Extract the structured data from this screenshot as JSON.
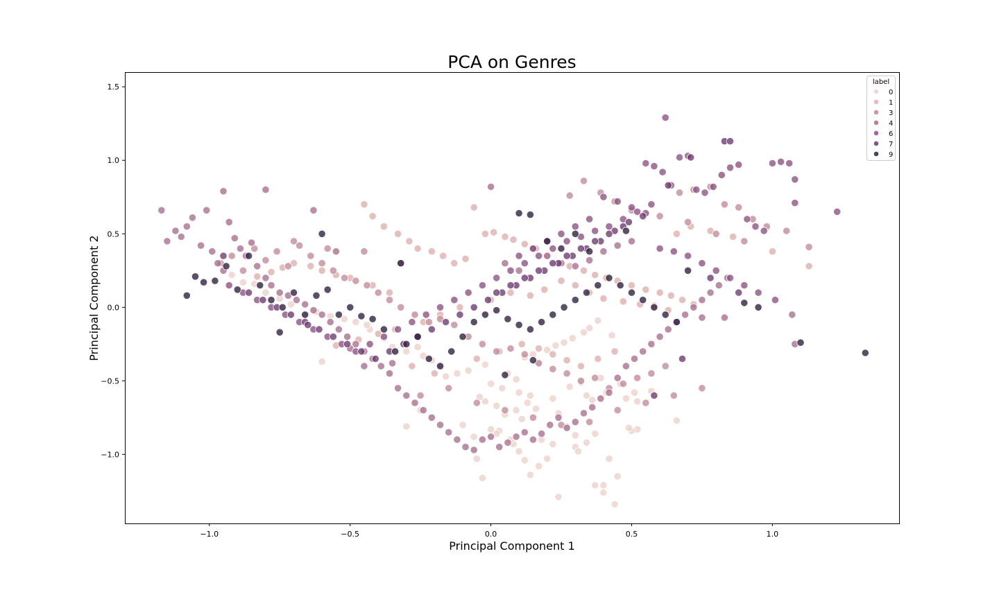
{
  "chart_data": {
    "type": "scatter",
    "title": "PCA on Genres",
    "xlabel": "Principal Component 1",
    "ylabel": "Principal Component 2",
    "xlim": [
      -1.3,
      1.45
    ],
    "ylim": [
      -1.47,
      1.6
    ],
    "xticks": [
      -1.0,
      -0.5,
      0.0,
      0.5,
      1.0
    ],
    "xtick_labels": [
      "−1.0",
      "−0.5",
      "0.0",
      "0.5",
      "1.0"
    ],
    "yticks": [
      1.5,
      1.0,
      0.5,
      0.0,
      -0.5,
      -1.0
    ],
    "ytick_labels": [
      "1.5",
      "1.0",
      "0.5",
      "0.0",
      "−0.5",
      "−1.0"
    ],
    "grid": false,
    "legend": {
      "title": "label",
      "placement": "top-right"
    },
    "series": [
      {
        "name": "0",
        "color": "#edd1cb",
        "x": [
          0.4,
          0.44,
          0.37,
          0.45,
          0.42,
          0.4,
          0.52,
          0.5,
          0.49,
          0.57,
          0.66,
          0.3,
          0.31,
          0.34,
          0.37,
          0.24,
          0.2,
          0.22,
          0.18,
          0.17,
          0.14,
          0.12,
          0.1,
          0.08,
          0.07,
          0.03,
          0.02,
          0.0,
          -0.05,
          -0.03,
          -0.02,
          0.02,
          0.05,
          0.09,
          0.11,
          0.13,
          0.16,
          0.24,
          0.27,
          0.3,
          0.34,
          0.36,
          0.41,
          0.48,
          0.51,
          0.52,
          -0.08,
          -0.12,
          -0.16,
          -0.18,
          -0.21,
          -0.24,
          -0.26,
          -0.3,
          -0.35,
          -0.38,
          -0.43,
          -0.44,
          -0.48,
          -0.52,
          -0.57,
          -0.62,
          -0.66,
          -0.71,
          -0.75,
          -0.8,
          -0.84,
          -0.88,
          -0.92,
          -0.6,
          -0.3,
          -0.25,
          0.0,
          0.04,
          -0.02,
          0.06,
          0.09,
          0.12,
          0.15,
          0.17,
          0.2,
          0.23,
          0.26,
          0.29,
          0.33,
          0.35,
          0.38,
          0.43,
          -0.1,
          -0.06,
          -0.04,
          0.1,
          0.14,
          0.22,
          0.28,
          0.32,
          0.39,
          0.46
        ],
        "y": [
          -1.26,
          -1.34,
          -1.21,
          -1.15,
          -1.03,
          -1.21,
          -0.83,
          -0.84,
          -0.82,
          -0.57,
          -0.77,
          -0.95,
          -0.98,
          -0.92,
          -0.86,
          -1.29,
          -1.03,
          -0.93,
          -0.9,
          -1.08,
          -1.14,
          -1.04,
          -0.98,
          -0.93,
          -0.9,
          -0.84,
          -0.86,
          -0.83,
          -1.03,
          -1.16,
          -0.64,
          -0.67,
          -0.73,
          -0.7,
          -0.76,
          -0.65,
          -0.69,
          -0.72,
          -0.81,
          -0.87,
          -0.6,
          -0.63,
          -0.58,
          -0.62,
          -0.58,
          -0.64,
          -0.43,
          -0.45,
          -0.47,
          -0.4,
          -0.36,
          -0.33,
          -0.27,
          -0.3,
          -0.27,
          -0.21,
          -0.15,
          -0.12,
          -0.1,
          -0.08,
          -0.06,
          -0.03,
          -0.05,
          0.02,
          0.06,
          0.1,
          0.16,
          0.17,
          0.22,
          -0.37,
          -0.81,
          -0.7,
          -0.52,
          -0.55,
          -0.39,
          -0.45,
          -0.49,
          -0.34,
          -0.32,
          -0.38,
          -0.29,
          -0.26,
          -0.24,
          -0.21,
          -0.17,
          -0.14,
          -0.09,
          -0.19,
          -0.8,
          -0.88,
          -0.61,
          -0.58,
          -0.6,
          -0.62,
          -0.54,
          -0.51,
          -0.48,
          -0.52
        ]
      },
      {
        "name": "1",
        "color": "#dcb0ad",
        "x": [
          -0.45,
          -0.42,
          -0.38,
          -0.33,
          -0.29,
          -0.26,
          -0.21,
          -0.17,
          -0.13,
          -0.09,
          -0.06,
          -0.02,
          0.01,
          0.05,
          0.08,
          0.12,
          0.16,
          0.2,
          0.24,
          0.28,
          0.33,
          0.37,
          0.41,
          0.45,
          0.5,
          0.55,
          0.6,
          0.64,
          0.68,
          0.72,
          -0.5,
          -0.55,
          -0.6,
          -0.64,
          -0.7,
          -0.74,
          -0.78,
          -0.83,
          -0.55,
          -0.47,
          -0.4,
          -0.34,
          -0.24,
          -0.18,
          -0.11,
          0.0,
          0.07,
          0.14,
          0.19,
          0.25,
          0.3,
          0.35,
          0.4,
          0.47,
          0.53,
          0.58,
          0.63,
          -0.28,
          -0.2,
          -0.05,
          0.03,
          0.11,
          0.17,
          0.22,
          0.27,
          0.32,
          0.38,
          0.44,
          0.66,
          0.71,
          0.78,
          0.86,
          1.13,
          1.0,
          -0.42,
          -0.36
        ],
        "y": [
          0.7,
          0.62,
          0.55,
          0.5,
          0.45,
          0.4,
          0.38,
          0.35,
          0.3,
          0.33,
          0.68,
          0.5,
          0.51,
          0.48,
          0.46,
          0.43,
          0.4,
          0.35,
          0.3,
          0.28,
          0.25,
          0.22,
          0.2,
          0.18,
          0.15,
          0.12,
          0.1,
          0.08,
          0.05,
          0.02,
          0.2,
          0.22,
          0.25,
          0.28,
          0.3,
          0.27,
          0.24,
          0.21,
          -0.26,
          -0.22,
          -0.18,
          -0.15,
          -0.1,
          -0.05,
          0.0,
          0.05,
          0.1,
          0.08,
          0.12,
          0.18,
          0.15,
          0.1,
          0.06,
          0.04,
          0.02,
          0.01,
          -0.02,
          -0.4,
          -0.45,
          -0.35,
          -0.3,
          -0.25,
          -0.28,
          -0.32,
          -0.36,
          -0.4,
          -0.35,
          -0.3,
          0.5,
          0.55,
          0.52,
          0.48,
          0.28,
          0.38,
          0.15,
          0.1
        ]
      },
      {
        "name": "3",
        "color": "#c08a98",
        "x": [
          -0.96,
          -0.92,
          -0.88,
          -0.84,
          -0.8,
          -0.76,
          -0.72,
          -0.68,
          -0.64,
          -0.6,
          -0.56,
          -0.52,
          -0.48,
          -0.44,
          -0.4,
          -0.36,
          -0.32,
          -0.27,
          -0.22,
          -0.18,
          -0.13,
          -0.08,
          -0.03,
          0.02,
          0.07,
          0.12,
          0.17,
          0.22,
          0.27,
          0.32,
          0.37,
          0.42,
          0.47,
          0.52,
          0.57,
          0.62,
          0.67,
          0.72,
          0.78,
          0.83,
          0.88,
          0.93,
          0.98,
          1.05,
          1.13,
          -0.25,
          -0.15,
          -0.05,
          0.05,
          0.15,
          0.25,
          0.35,
          0.45,
          0.55,
          0.65,
          0.75,
          -0.7,
          -0.58,
          -0.45,
          -0.32,
          0.28,
          0.33,
          0.39,
          0.44,
          0.5,
          0.6,
          0.7,
          0.8,
          0.9
        ],
        "y": [
          0.3,
          0.35,
          0.25,
          0.4,
          0.32,
          0.38,
          0.28,
          0.42,
          0.35,
          0.3,
          0.25,
          0.2,
          0.18,
          0.15,
          0.1,
          0.05,
          0.0,
          -0.05,
          -0.1,
          -0.08,
          -0.12,
          -0.2,
          -0.25,
          -0.3,
          -0.28,
          -0.32,
          -0.38,
          -0.42,
          -0.45,
          -0.5,
          -0.48,
          -0.55,
          -0.52,
          -0.48,
          -0.45,
          -0.4,
          0.78,
          0.8,
          0.82,
          0.7,
          0.68,
          0.6,
          0.55,
          0.52,
          0.41,
          -0.6,
          -0.55,
          -0.65,
          -0.7,
          -0.75,
          -0.8,
          -0.78,
          -0.7,
          -0.65,
          -0.6,
          -0.55,
          0.45,
          0.4,
          0.38,
          0.3,
          0.76,
          0.86,
          0.78,
          0.72,
          0.66,
          0.62,
          0.58,
          0.5,
          0.45
        ]
      },
      {
        "name": "4",
        "color": "#a86e8f",
        "x": [
          -1.17,
          -1.15,
          -1.12,
          -1.1,
          -1.08,
          -1.06,
          -1.03,
          -1.01,
          -0.99,
          -0.97,
          -0.95,
          -0.93,
          -0.91,
          -0.89,
          -0.87,
          -0.85,
          -0.83,
          -0.8,
          -0.78,
          -0.75,
          -0.72,
          -0.69,
          -0.66,
          -0.63,
          -0.6,
          -0.57,
          -0.54,
          -0.51,
          -0.48,
          -0.45,
          -0.42,
          -0.39,
          -0.36,
          -0.33,
          -0.3,
          -0.27,
          -0.24,
          -0.21,
          -0.18,
          -0.15,
          -0.12,
          -0.09,
          -0.06,
          -0.03,
          0.0,
          0.03,
          0.06,
          0.09,
          0.12,
          0.15,
          0.18,
          0.21,
          0.24,
          0.27,
          0.3,
          0.33,
          0.36,
          0.39,
          0.42,
          0.45,
          0.48,
          0.51,
          0.54,
          0.57,
          0.6,
          0.63,
          0.66,
          0.69,
          0.72,
          0.75,
          0.78,
          0.81,
          0.84,
          1.07,
          1.08,
          -0.95,
          -0.8,
          -0.63,
          -0.55,
          0.0,
          0.05,
          0.1,
          0.15,
          0.2,
          0.25,
          0.3,
          0.35,
          0.4,
          0.45,
          0.5,
          -0.5,
          -0.45,
          -0.35,
          0.75,
          0.83
        ],
        "y": [
          0.66,
          0.45,
          0.52,
          0.48,
          0.55,
          0.61,
          0.42,
          0.66,
          0.38,
          0.3,
          0.25,
          0.58,
          0.47,
          0.4,
          0.35,
          0.44,
          0.28,
          0.2,
          0.15,
          0.1,
          0.08,
          0.05,
          0.02,
          -0.02,
          -0.05,
          -0.1,
          -0.15,
          -0.2,
          -0.25,
          -0.3,
          -0.35,
          -0.4,
          -0.45,
          -0.55,
          -0.6,
          -0.65,
          -0.7,
          -0.75,
          -0.8,
          -0.85,
          -0.9,
          -0.95,
          -0.97,
          -0.9,
          -0.88,
          -0.95,
          -0.92,
          -0.88,
          -0.85,
          -0.9,
          -0.86,
          -0.8,
          -0.75,
          -0.82,
          -0.78,
          -0.72,
          -0.68,
          -0.62,
          -0.58,
          -0.48,
          -0.4,
          -0.35,
          -0.3,
          -0.25,
          -0.2,
          -0.15,
          -0.1,
          -0.05,
          0.0,
          0.05,
          0.1,
          0.15,
          0.2,
          -0.05,
          -0.25,
          0.79,
          0.8,
          0.66,
          0.38,
          0.82,
          0.3,
          0.25,
          0.4,
          0.35,
          0.3,
          0.28,
          0.32,
          0.38,
          0.42,
          0.45,
          -0.28,
          -0.4,
          -0.38,
          -0.07,
          -0.07
        ]
      },
      {
        "name": "6",
        "color": "#8a5282",
        "x": [
          0.55,
          0.58,
          0.61,
          0.64,
          0.67,
          0.7,
          0.73,
          0.76,
          0.79,
          0.82,
          0.85,
          0.88,
          0.91,
          0.94,
          0.97,
          1.0,
          1.03,
          1.06,
          1.08,
          1.23,
          0.62,
          0.57,
          0.52,
          0.47,
          0.42,
          0.37,
          0.32,
          0.27,
          0.22,
          0.17,
          0.12,
          0.07,
          0.02,
          -0.03,
          -0.08,
          -0.13,
          -0.18,
          -0.23,
          -0.28,
          -0.33,
          -0.38,
          -0.43,
          -0.48,
          -0.53,
          -0.58,
          -0.63,
          -0.68,
          -0.73,
          -0.78,
          -0.83,
          -0.88,
          -0.93,
          0.6,
          0.65,
          0.7,
          0.75,
          0.8,
          0.85,
          0.9,
          0.95,
          1.01,
          1.08,
          0.4,
          0.45,
          0.5,
          0.55,
          0.35,
          0.3,
          0.25,
          0.2,
          0.15,
          0.1
        ],
        "y": [
          0.98,
          0.96,
          0.92,
          0.83,
          1.02,
          1.03,
          0.8,
          0.78,
          0.82,
          0.9,
          0.95,
          0.97,
          0.6,
          0.55,
          0.52,
          0.98,
          0.99,
          0.98,
          0.87,
          0.65,
          1.29,
          0.7,
          0.65,
          0.6,
          0.55,
          0.52,
          0.48,
          0.45,
          0.4,
          0.35,
          0.3,
          0.25,
          0.2,
          0.15,
          0.1,
          0.05,
          0.0,
          -0.05,
          -0.1,
          -0.15,
          -0.2,
          -0.25,
          -0.3,
          -0.25,
          -0.2,
          -0.15,
          -0.1,
          -0.05,
          0.0,
          0.05,
          0.1,
          0.15,
          0.4,
          0.38,
          0.35,
          0.3,
          0.25,
          0.2,
          0.15,
          0.1,
          0.05,
          0.71,
          0.75,
          0.72,
          0.68,
          0.64,
          0.6,
          0.55,
          0.5,
          0.45,
          0.4,
          0.35
        ]
      },
      {
        "name": "7",
        "color": "#6b3a6e",
        "x": [
          0.83,
          0.85,
          0.71,
          0.63,
          0.54,
          0.49,
          0.44,
          0.39,
          0.34,
          0.29,
          0.24,
          0.19,
          0.14,
          0.09,
          0.04,
          -0.01,
          -0.06,
          -0.11,
          -0.16,
          -0.21,
          -0.26,
          -0.31,
          -0.36,
          -0.41,
          -0.46,
          -0.51,
          -0.56,
          -0.61,
          -0.66,
          -0.71,
          -0.76,
          -0.81,
          -0.86,
          0.47,
          0.42,
          0.37,
          0.32,
          0.27,
          0.22,
          0.17,
          0.12,
          0.07,
          0.02,
          0.58,
          0.68,
          0.78,
          0.88,
          -0.95,
          -0.65
        ],
        "y": [
          1.13,
          1.13,
          1.02,
          0.83,
          0.62,
          0.58,
          0.52,
          0.45,
          0.4,
          0.35,
          0.3,
          0.25,
          0.2,
          0.15,
          0.1,
          0.05,
          0.0,
          -0.05,
          -0.1,
          -0.15,
          -0.2,
          -0.25,
          -0.3,
          -0.35,
          -0.3,
          -0.25,
          -0.2,
          -0.15,
          -0.1,
          -0.05,
          0.0,
          0.05,
          0.1,
          0.55,
          0.5,
          0.45,
          0.4,
          0.35,
          0.3,
          0.25,
          0.2,
          0.15,
          0.1,
          -0.6,
          -0.35,
          0.2,
          0.1,
          0.35,
          -0.12
        ]
      },
      {
        "name": "9",
        "color": "#2d1e3e",
        "x": [
          -1.08,
          -1.05,
          -1.02,
          -0.98,
          -0.94,
          -0.9,
          -0.86,
          -0.82,
          -0.78,
          -0.74,
          -0.7,
          -0.66,
          -0.62,
          -0.58,
          -0.54,
          -0.5,
          -0.46,
          -0.42,
          -0.38,
          -0.34,
          -0.3,
          -0.26,
          -0.22,
          -0.18,
          -0.14,
          -0.1,
          -0.06,
          -0.02,
          0.02,
          0.06,
          0.1,
          0.14,
          0.18,
          0.22,
          0.26,
          0.3,
          0.34,
          0.38,
          0.42,
          0.46,
          0.5,
          0.54,
          0.58,
          0.62,
          0.66,
          0.7,
          0.1,
          0.14,
          0.2,
          0.25,
          0.35,
          0.48,
          0.9,
          0.95,
          1.1,
          1.33,
          -0.32,
          -0.75,
          -0.6,
          0.05,
          0.15,
          0.3
        ],
        "y": [
          0.08,
          0.21,
          0.17,
          0.18,
          0.28,
          0.12,
          0.35,
          0.15,
          0.05,
          0.0,
          0.1,
          -0.05,
          0.08,
          0.12,
          -0.05,
          0.0,
          -0.06,
          -0.08,
          -0.15,
          -0.3,
          -0.25,
          -0.2,
          -0.35,
          -0.4,
          -0.3,
          -0.2,
          -0.1,
          -0.05,
          -0.02,
          -0.08,
          -0.12,
          -0.15,
          -0.1,
          -0.05,
          0.0,
          0.05,
          0.1,
          0.15,
          0.2,
          0.15,
          0.1,
          0.05,
          0.0,
          -0.05,
          -0.1,
          0.25,
          0.64,
          0.63,
          0.45,
          0.4,
          0.38,
          0.52,
          0.03,
          0.0,
          -0.24,
          -0.31,
          0.3,
          -0.17,
          0.5,
          -0.46,
          -0.36,
          0.5
        ]
      }
    ]
  }
}
